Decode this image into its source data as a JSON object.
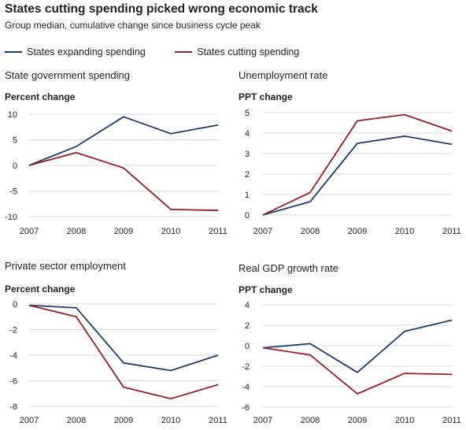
{
  "title": "States cutting spending picked wrong economic track",
  "subtitle": "Group median, cumulative change since business cycle peak",
  "legend": [
    {
      "name": "States expanding spending",
      "color": "#1f3a6e"
    },
    {
      "name": "States cutting spending",
      "color": "#9b1c22"
    }
  ],
  "chart_data": [
    {
      "type": "line",
      "title": "State government spending",
      "ylabel": "Percent change",
      "x": [
        "2007",
        "2008",
        "2009",
        "2010",
        "2011"
      ],
      "ylim": [
        -10,
        10
      ],
      "yticks": [
        "10",
        "5",
        "0",
        "-5",
        "-10"
      ],
      "grid": true,
      "series": [
        {
          "name": "States expanding spending",
          "values": [
            0,
            3.7,
            9.5,
            6.2,
            7.9
          ]
        },
        {
          "name": "States cutting spending",
          "values": [
            0,
            2.5,
            -0.5,
            -8.6,
            -8.8
          ]
        }
      ]
    },
    {
      "type": "line",
      "title": "Unemployment rate",
      "ylabel": "PPT change",
      "x": [
        "2007",
        "2008",
        "2009",
        "2010",
        "2011"
      ],
      "ylim": [
        0,
        5
      ],
      "yticks": [
        "5",
        "4",
        "3",
        "2",
        "1",
        "0"
      ],
      "grid": true,
      "series": [
        {
          "name": "States expanding spending",
          "values": [
            0,
            0.65,
            3.5,
            3.85,
            3.45
          ]
        },
        {
          "name": "States cutting spending",
          "values": [
            0,
            1.1,
            4.6,
            4.9,
            4.1
          ]
        }
      ]
    },
    {
      "type": "line",
      "title": "Private sector employment",
      "ylabel": "Percent change",
      "x": [
        "2007",
        "2008",
        "2009",
        "2010",
        "2011"
      ],
      "ylim": [
        -8,
        0
      ],
      "yticks": [
        "0",
        "-2",
        "-4",
        "-6",
        "-8"
      ],
      "grid": true,
      "series": [
        {
          "name": "States expanding spending",
          "values": [
            -0.1,
            -0.3,
            -4.6,
            -5.2,
            -4.0
          ]
        },
        {
          "name": "States cutting spending",
          "values": [
            -0.1,
            -1.0,
            -6.5,
            -7.4,
            -6.3
          ]
        }
      ]
    },
    {
      "type": "line",
      "title": "Real GDP growth rate",
      "ylabel": "PPT change",
      "x": [
        "2007",
        "2008",
        "2009",
        "2010",
        "2011"
      ],
      "ylim": [
        -6,
        4
      ],
      "yticks": [
        "4",
        "2",
        "0",
        "-2",
        "-4",
        "-6"
      ],
      "grid": true,
      "series": [
        {
          "name": "States expanding spending",
          "values": [
            -0.2,
            0.2,
            -2.6,
            1.4,
            2.5
          ]
        },
        {
          "name": "States cutting spending",
          "values": [
            -0.2,
            -0.9,
            -4.7,
            -2.7,
            -2.8
          ]
        }
      ]
    }
  ]
}
